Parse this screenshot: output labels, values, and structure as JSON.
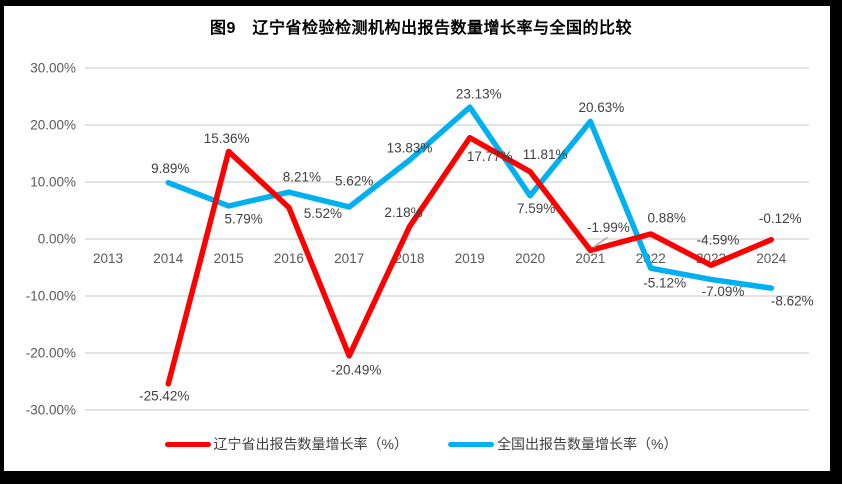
{
  "title": "图9　辽宁省检验检测机构出报告数量增长率与全国的比较",
  "chart_data": {
    "type": "line",
    "title": "图9　辽宁省检验检测机构出报告数量增长率与全国的比较",
    "x": [
      "2013",
      "2014",
      "2015",
      "2016",
      "2017",
      "2018",
      "2019",
      "2020",
      "2021",
      "2022",
      "2023",
      "2024"
    ],
    "series": [
      {
        "name": "辽宁省出报告数量增长率（%）",
        "color": "#FE0000",
        "values": [
          null,
          -25.42,
          15.36,
          5.52,
          -20.49,
          2.18,
          17.77,
          11.81,
          -1.99,
          0.88,
          -4.59,
          -0.12
        ]
      },
      {
        "name": "全国出报告数量增长率（%）",
        "color": "#00B0F0",
        "values": [
          null,
          9.89,
          5.79,
          8.21,
          5.62,
          13.83,
          23.13,
          7.59,
          20.63,
          -5.12,
          -7.09,
          -8.62
        ]
      }
    ],
    "ylim": [
      -30,
      30
    ],
    "y_tick_labels": [
      "30.00%",
      "20.00%",
      "10.00%",
      "0.00%",
      "-10.00%",
      "-20.00%",
      "-30.00%"
    ],
    "grid": true,
    "data_labels": true,
    "legend_position": "bottom"
  },
  "colors": {
    "background": "#FFFFFF",
    "frame": "#000000",
    "grid": "#E3E3E3",
    "axis_text": "#595959",
    "data_label_text": "#3F3F3F",
    "leader_line": "#A6A6A6"
  }
}
